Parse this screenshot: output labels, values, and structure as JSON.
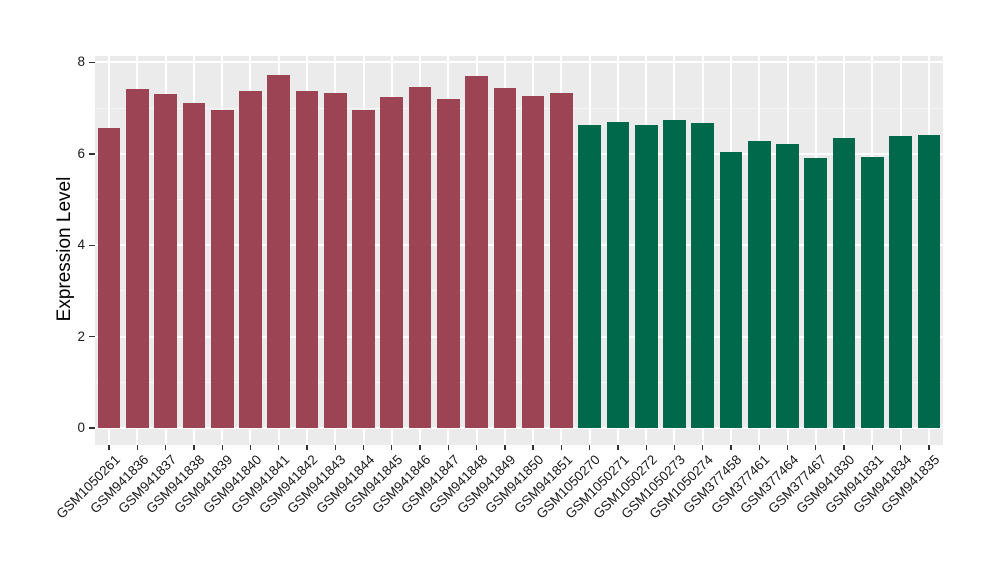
{
  "chart_data": {
    "type": "bar",
    "ylabel": "Expression Level",
    "categories": [
      "GSM1050261",
      "GSM941836",
      "GSM941837",
      "GSM941838",
      "GSM941839",
      "GSM941840",
      "GSM941841",
      "GSM941842",
      "GSM941843",
      "GSM941844",
      "GSM941845",
      "GSM941846",
      "GSM941847",
      "GSM941848",
      "GSM941849",
      "GSM941850",
      "GSM941851",
      "GSM1050270",
      "GSM1050271",
      "GSM1050272",
      "GSM1050273",
      "GSM1050274",
      "GSM377458",
      "GSM377461",
      "GSM377464",
      "GSM377467",
      "GSM941830",
      "GSM941831",
      "GSM941834",
      "GSM941835"
    ],
    "values": [
      6.56,
      7.42,
      7.31,
      7.11,
      6.96,
      7.38,
      7.73,
      7.37,
      7.32,
      6.96,
      7.25,
      7.47,
      7.21,
      7.7,
      7.45,
      7.27,
      7.34,
      6.64,
      6.7,
      6.63,
      6.74,
      6.68,
      6.05,
      6.28,
      6.22,
      5.91,
      6.35,
      5.92,
      6.4,
      6.42
    ],
    "groups": [
      {
        "name": "group-1",
        "color": "#9C4453",
        "start_index": 0,
        "end_index": 16
      },
      {
        "name": "group-2",
        "color": "#00684B",
        "start_index": 17,
        "end_index": 29
      }
    ],
    "ylim": [
      -0.37,
      8.14
    ],
    "yticks": [
      0,
      2,
      4,
      6,
      8
    ],
    "yticks_minor": [
      1,
      3,
      5,
      7
    ],
    "bar_width_fraction": 0.8,
    "label_rotation_deg": 45,
    "grid": "on",
    "legend": "none",
    "panel_background": "#EBEBEB",
    "gridline_major_color": "#FFFFFF",
    "gridline_minor_color": "#F6F6F6",
    "axis_text_color": "#1A1A1A",
    "tick_mark_color": "#333333"
  }
}
